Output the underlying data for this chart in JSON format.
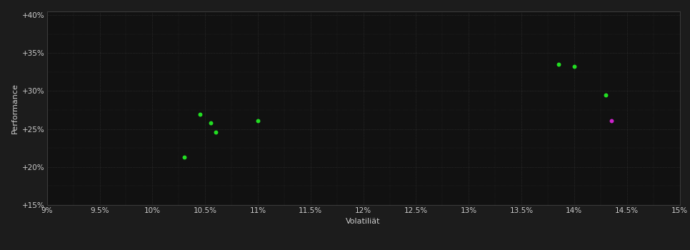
{
  "background_color": "#1c1c1c",
  "plot_bg_color": "#111111",
  "grid_color": "#3a3a3a",
  "text_color": "#cccccc",
  "xlabel": "Volatiliät",
  "ylabel": "Performance",
  "xlim": [
    0.09,
    0.15
  ],
  "ylim": [
    0.15,
    0.405
  ],
  "xticks": [
    0.09,
    0.095,
    0.1,
    0.105,
    0.11,
    0.115,
    0.12,
    0.125,
    0.13,
    0.135,
    0.14,
    0.145,
    0.15
  ],
  "yticks": [
    0.15,
    0.2,
    0.25,
    0.3,
    0.35,
    0.4
  ],
  "ytick_labels": [
    "+15%",
    "+20%",
    "+25%",
    "+30%",
    "+35%",
    "+40%"
  ],
  "xtick_labels": [
    "9%",
    "9.5%",
    "10%",
    "10.5%",
    "11%",
    "11.5%",
    "12%",
    "12.5%",
    "13%",
    "13.5%",
    "14%",
    "14.5%",
    "15%"
  ],
  "points_green": [
    [
      0.103,
      0.213
    ],
    [
      0.1045,
      0.269
    ],
    [
      0.1055,
      0.258
    ],
    [
      0.106,
      0.246
    ],
    [
      0.11,
      0.261
    ],
    [
      0.1385,
      0.335
    ],
    [
      0.14,
      0.332
    ],
    [
      0.143,
      0.295
    ]
  ],
  "points_magenta": [
    [
      0.1435,
      0.261
    ]
  ],
  "green_color": "#22dd22",
  "magenta_color": "#cc22cc",
  "marker_size": 18,
  "axis_fontsize": 8,
  "tick_fontsize": 7.5
}
